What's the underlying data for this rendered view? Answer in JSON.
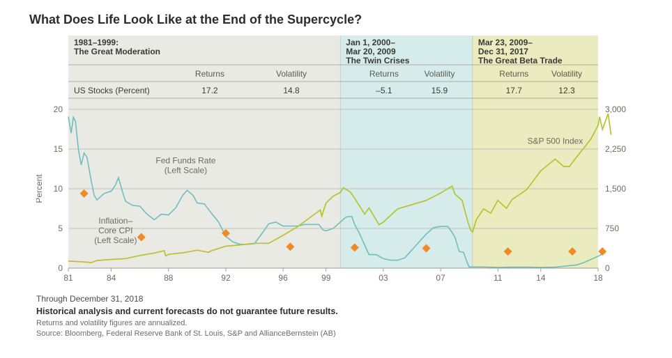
{
  "title": "What Does Life Look Like at the End of the Supercycle?",
  "chart": {
    "background": "#ffffff",
    "plot_bg_default": "#eaeae5",
    "font_family": "Arial, Helvetica, sans-serif",
    "x": {
      "min": 1981,
      "max": 2018,
      "ticks": [
        1981,
        1984,
        1988,
        1992,
        1996,
        1999,
        2003,
        2007,
        2011,
        2014,
        2018
      ],
      "tick_labels": [
        "81",
        "84",
        "88",
        "92",
        "96",
        "99",
        "03",
        "07",
        "11",
        "14",
        "18"
      ],
      "tick_color": "#8a8a82",
      "label_color": "#6b6b64",
      "font_size": 12
    },
    "y_left": {
      "title": "Percent",
      "min": 0,
      "max": 20,
      "tick_step": 5,
      "tick_color": "#9a9a92",
      "label_color": "#6b6b64",
      "grid_color": "#9a9a92",
      "font_size": 12
    },
    "y_right": {
      "min": 0,
      "max": 3000,
      "tick_step": 750,
      "tick_color": "#9a9a92",
      "label_color": "#6b6b64",
      "font_size": 12
    },
    "periods": [
      {
        "heading_line1": "1981–1999:",
        "heading_line2": "The Great Moderation",
        "start": 1981,
        "end": 2000.0,
        "bg": "#eaeae5",
        "returns": "17.2",
        "volatility": "14.8"
      },
      {
        "heading_line1": "Jan 1, 2000–",
        "heading_line2": "Mar 20, 2009",
        "heading_line3": "The Twin Crises",
        "start": 2000.0,
        "end": 2009.23,
        "bg": "#d6ecea",
        "returns": "–5.1",
        "volatility": "15.9"
      },
      {
        "heading_line1": "Mar 23, 2009–",
        "heading_line2": "Dec 31, 2017",
        "heading_line3": "The Great Beta Trade",
        "start": 2009.23,
        "end": 2018.0,
        "bg": "#ebebc0",
        "returns": "17.7",
        "volatility": "12.3"
      }
    ],
    "table": {
      "col_returns_label": "Returns",
      "col_volatility_label": "Volatility",
      "row_label": "US Stocks (Percent)",
      "header_color": "#5a5a52",
      "divider_color": "#9a9a92",
      "font_size": 12,
      "label_font_size": 12
    },
    "series": {
      "fed_funds": {
        "label_line1": "Fed Funds Rate",
        "label_line2": "(Left Scale)",
        "label_x": 1989.2,
        "label_y_pct": 13.2,
        "color": "#6fbdbf",
        "width": 1.6,
        "data": [
          [
            1981.0,
            19.1
          ],
          [
            1981.2,
            17.0
          ],
          [
            1981.35,
            19.0
          ],
          [
            1981.5,
            18.5
          ],
          [
            1981.7,
            15.0
          ],
          [
            1981.9,
            13.0
          ],
          [
            1982.1,
            14.5
          ],
          [
            1982.3,
            14.0
          ],
          [
            1982.6,
            11.0
          ],
          [
            1982.8,
            9.2
          ],
          [
            1983.0,
            8.6
          ],
          [
            1983.5,
            9.4
          ],
          [
            1984.0,
            9.7
          ],
          [
            1984.3,
            10.5
          ],
          [
            1984.5,
            11.4
          ],
          [
            1984.8,
            9.5
          ],
          [
            1985.0,
            8.4
          ],
          [
            1985.5,
            7.9
          ],
          [
            1986.0,
            7.8
          ],
          [
            1986.5,
            6.8
          ],
          [
            1987.0,
            6.1
          ],
          [
            1987.5,
            6.8
          ],
          [
            1988.0,
            6.7
          ],
          [
            1988.5,
            7.6
          ],
          [
            1989.0,
            9.2
          ],
          [
            1989.3,
            9.8
          ],
          [
            1989.7,
            9.2
          ],
          [
            1990.0,
            8.2
          ],
          [
            1990.5,
            8.1
          ],
          [
            1991.0,
            6.9
          ],
          [
            1991.5,
            5.8
          ],
          [
            1992.0,
            4.0
          ],
          [
            1992.5,
            3.3
          ],
          [
            1993.0,
            3.0
          ],
          [
            1993.5,
            3.0
          ],
          [
            1994.0,
            3.1
          ],
          [
            1994.5,
            4.3
          ],
          [
            1995.0,
            5.6
          ],
          [
            1995.5,
            5.8
          ],
          [
            1996.0,
            5.3
          ],
          [
            1996.5,
            5.3
          ],
          [
            1997.0,
            5.3
          ],
          [
            1997.5,
            5.5
          ],
          [
            1998.0,
            5.5
          ],
          [
            1998.5,
            5.5
          ],
          [
            1998.8,
            4.8
          ],
          [
            1999.0,
            4.7
          ],
          [
            1999.5,
            5.0
          ],
          [
            2000.0,
            5.8
          ],
          [
            2000.3,
            6.3
          ],
          [
            2000.5,
            6.5
          ],
          [
            2000.8,
            6.5
          ],
          [
            2001.0,
            5.5
          ],
          [
            2001.3,
            4.5
          ],
          [
            2001.5,
            3.7
          ],
          [
            2001.8,
            2.5
          ],
          [
            2002.0,
            1.7
          ],
          [
            2002.5,
            1.7
          ],
          [
            2003.0,
            1.2
          ],
          [
            2003.5,
            1.0
          ],
          [
            2004.0,
            1.0
          ],
          [
            2004.5,
            1.3
          ],
          [
            2005.0,
            2.3
          ],
          [
            2005.5,
            3.3
          ],
          [
            2006.0,
            4.3
          ],
          [
            2006.5,
            5.1
          ],
          [
            2007.0,
            5.25
          ],
          [
            2007.5,
            5.25
          ],
          [
            2007.8,
            4.5
          ],
          [
            2008.0,
            3.9
          ],
          [
            2008.3,
            2.1
          ],
          [
            2008.6,
            2.0
          ],
          [
            2008.9,
            0.5
          ],
          [
            2009.0,
            0.15
          ],
          [
            2010.0,
            0.15
          ],
          [
            2011.0,
            0.1
          ],
          [
            2012.0,
            0.12
          ],
          [
            2013.0,
            0.12
          ],
          [
            2014.0,
            0.1
          ],
          [
            2015.0,
            0.12
          ],
          [
            2015.9,
            0.3
          ],
          [
            2016.5,
            0.4
          ],
          [
            2017.0,
            0.7
          ],
          [
            2017.5,
            1.1
          ],
          [
            2018.0,
            1.5
          ],
          [
            2018.5,
            2.0
          ]
        ]
      },
      "core_cpi": {
        "label_line1": "Inflation–",
        "label_line2": "Core CPI",
        "label_line3": "(Left Scale)",
        "label_x": 1984.3,
        "label_y_pct": 5.6,
        "color": "#6fbdbf",
        "width": 1.4,
        "dash": "",
        "hidden": true,
        "data": []
      },
      "sp500": {
        "label": "S&P 500 Index",
        "label_x": 2015.0,
        "label_y_right": 2350,
        "color": "#b6c22e",
        "width": 1.7,
        "data": [
          [
            1981.0,
            133
          ],
          [
            1982.0,
            120
          ],
          [
            1982.6,
            105
          ],
          [
            1983.0,
            145
          ],
          [
            1984.0,
            165
          ],
          [
            1985.0,
            180
          ],
          [
            1986.0,
            240
          ],
          [
            1987.0,
            285
          ],
          [
            1987.7,
            330
          ],
          [
            1987.8,
            230
          ],
          [
            1988.0,
            260
          ],
          [
            1989.0,
            290
          ],
          [
            1990.0,
            340
          ],
          [
            1990.8,
            300
          ],
          [
            1991.0,
            330
          ],
          [
            1992.0,
            415
          ],
          [
            1993.0,
            440
          ],
          [
            1994.0,
            470
          ],
          [
            1995.0,
            470
          ],
          [
            1996.0,
            620
          ],
          [
            1997.0,
            780
          ],
          [
            1998.0,
            980
          ],
          [
            1998.6,
            1100
          ],
          [
            1998.7,
            980
          ],
          [
            1999.0,
            1230
          ],
          [
            1999.5,
            1360
          ],
          [
            2000.0,
            1430
          ],
          [
            2000.2,
            1520
          ],
          [
            2000.7,
            1440
          ],
          [
            2001.0,
            1320
          ],
          [
            2001.7,
            1020
          ],
          [
            2002.0,
            1140
          ],
          [
            2002.7,
            820
          ],
          [
            2003.0,
            870
          ],
          [
            2004.0,
            1120
          ],
          [
            2005.0,
            1200
          ],
          [
            2006.0,
            1280
          ],
          [
            2007.0,
            1420
          ],
          [
            2007.8,
            1550
          ],
          [
            2008.0,
            1400
          ],
          [
            2008.5,
            1280
          ],
          [
            2008.9,
            880
          ],
          [
            2009.1,
            720
          ],
          [
            2009.23,
            683
          ],
          [
            2009.5,
            920
          ],
          [
            2010.0,
            1120
          ],
          [
            2010.5,
            1040
          ],
          [
            2011.0,
            1280
          ],
          [
            2011.6,
            1130
          ],
          [
            2012.0,
            1300
          ],
          [
            2013.0,
            1480
          ],
          [
            2014.0,
            1840
          ],
          [
            2015.0,
            2060
          ],
          [
            2015.6,
            1920
          ],
          [
            2016.0,
            1920
          ],
          [
            2016.5,
            2100
          ],
          [
            2017.0,
            2270
          ],
          [
            2017.5,
            2440
          ],
          [
            2018.0,
            2700
          ],
          [
            2018.1,
            2860
          ],
          [
            2018.3,
            2620
          ],
          [
            2018.7,
            2920
          ],
          [
            2018.9,
            2520
          ]
        ]
      },
      "cpi_markers": {
        "color": "#f08a24",
        "size": 6,
        "shape": "diamond",
        "data": [
          [
            1982.1,
            9.4
          ],
          [
            1986.1,
            3.9
          ],
          [
            1992.0,
            4.4
          ],
          [
            1996.5,
            2.7
          ],
          [
            2001.0,
            2.6
          ],
          [
            2006.0,
            2.5
          ],
          [
            2011.7,
            2.1
          ],
          [
            2016.2,
            2.1
          ],
          [
            2018.3,
            2.1
          ]
        ]
      }
    },
    "series_label_color": "#6b6b64",
    "series_label_font_size": 12
  },
  "footer": {
    "through": "Through December 31, 2018",
    "disclaimer": "Historical analysis and current forecasts do not guarantee future results.",
    "note": "Returns and volatility figures are annualized.",
    "source": "Source: Bloomberg, Federal Reserve Bank of St. Louis, S&P and AllianceBernstein (AB)"
  }
}
